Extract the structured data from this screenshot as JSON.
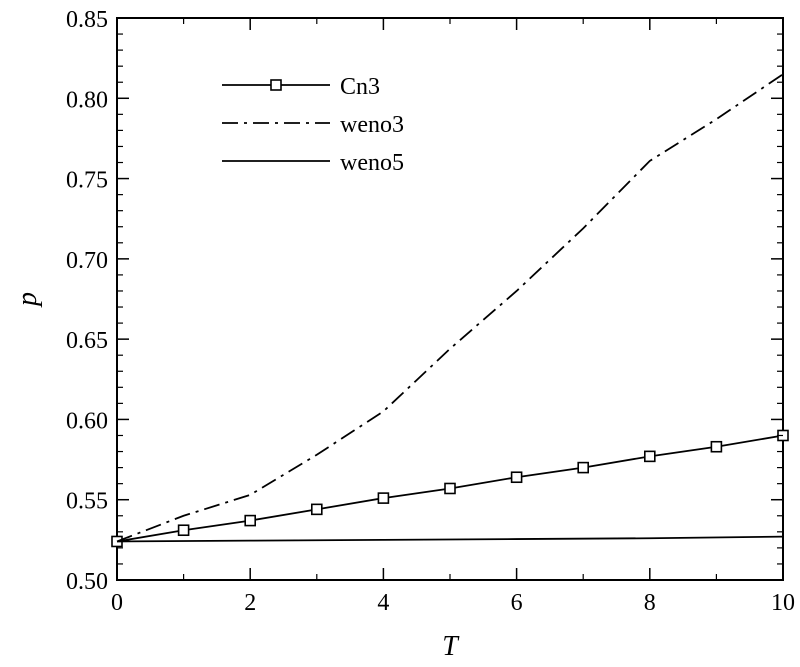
{
  "chart_data": {
    "type": "line",
    "title": "",
    "xlabel": "T",
    "ylabel": "p",
    "xlim": [
      0,
      10
    ],
    "ylim": [
      0.5,
      0.85
    ],
    "xticks": [
      0,
      2,
      4,
      6,
      8,
      10
    ],
    "xtick_labels": [
      "0",
      "2",
      "4",
      "6",
      "8",
      "10"
    ],
    "yticks": [
      0.5,
      0.55,
      0.6,
      0.65,
      0.7,
      0.75,
      0.8,
      0.85
    ],
    "ytick_labels": [
      "0.50",
      "0.55",
      "0.60",
      "0.65",
      "0.70",
      "0.75",
      "0.80",
      "0.85"
    ],
    "grid": false,
    "legend_position": "top-left",
    "series": [
      {
        "name": "Cn3",
        "line_style": "solid",
        "marker": "square",
        "color": "#000000",
        "x": [
          0,
          1,
          2,
          3,
          4,
          5,
          6,
          7,
          8,
          9,
          10
        ],
        "y": [
          0.524,
          0.531,
          0.537,
          0.544,
          0.551,
          0.557,
          0.564,
          0.57,
          0.577,
          0.583,
          0.59
        ]
      },
      {
        "name": "weno3",
        "line_style": "dash-dot",
        "marker": "none",
        "color": "#000000",
        "x": [
          0,
          1,
          2,
          3,
          4,
          5,
          6,
          7,
          8,
          9,
          10
        ],
        "y": [
          0.524,
          0.54,
          0.553,
          0.578,
          0.605,
          0.644,
          0.68,
          0.719,
          0.761,
          0.787,
          0.815
        ]
      },
      {
        "name": "weno5",
        "line_style": "solid",
        "marker": "none",
        "color": "#000000",
        "x": [
          0,
          2,
          4,
          6,
          8,
          10
        ],
        "y": [
          0.524,
          0.5245,
          0.525,
          0.5255,
          0.526,
          0.527
        ]
      }
    ]
  }
}
